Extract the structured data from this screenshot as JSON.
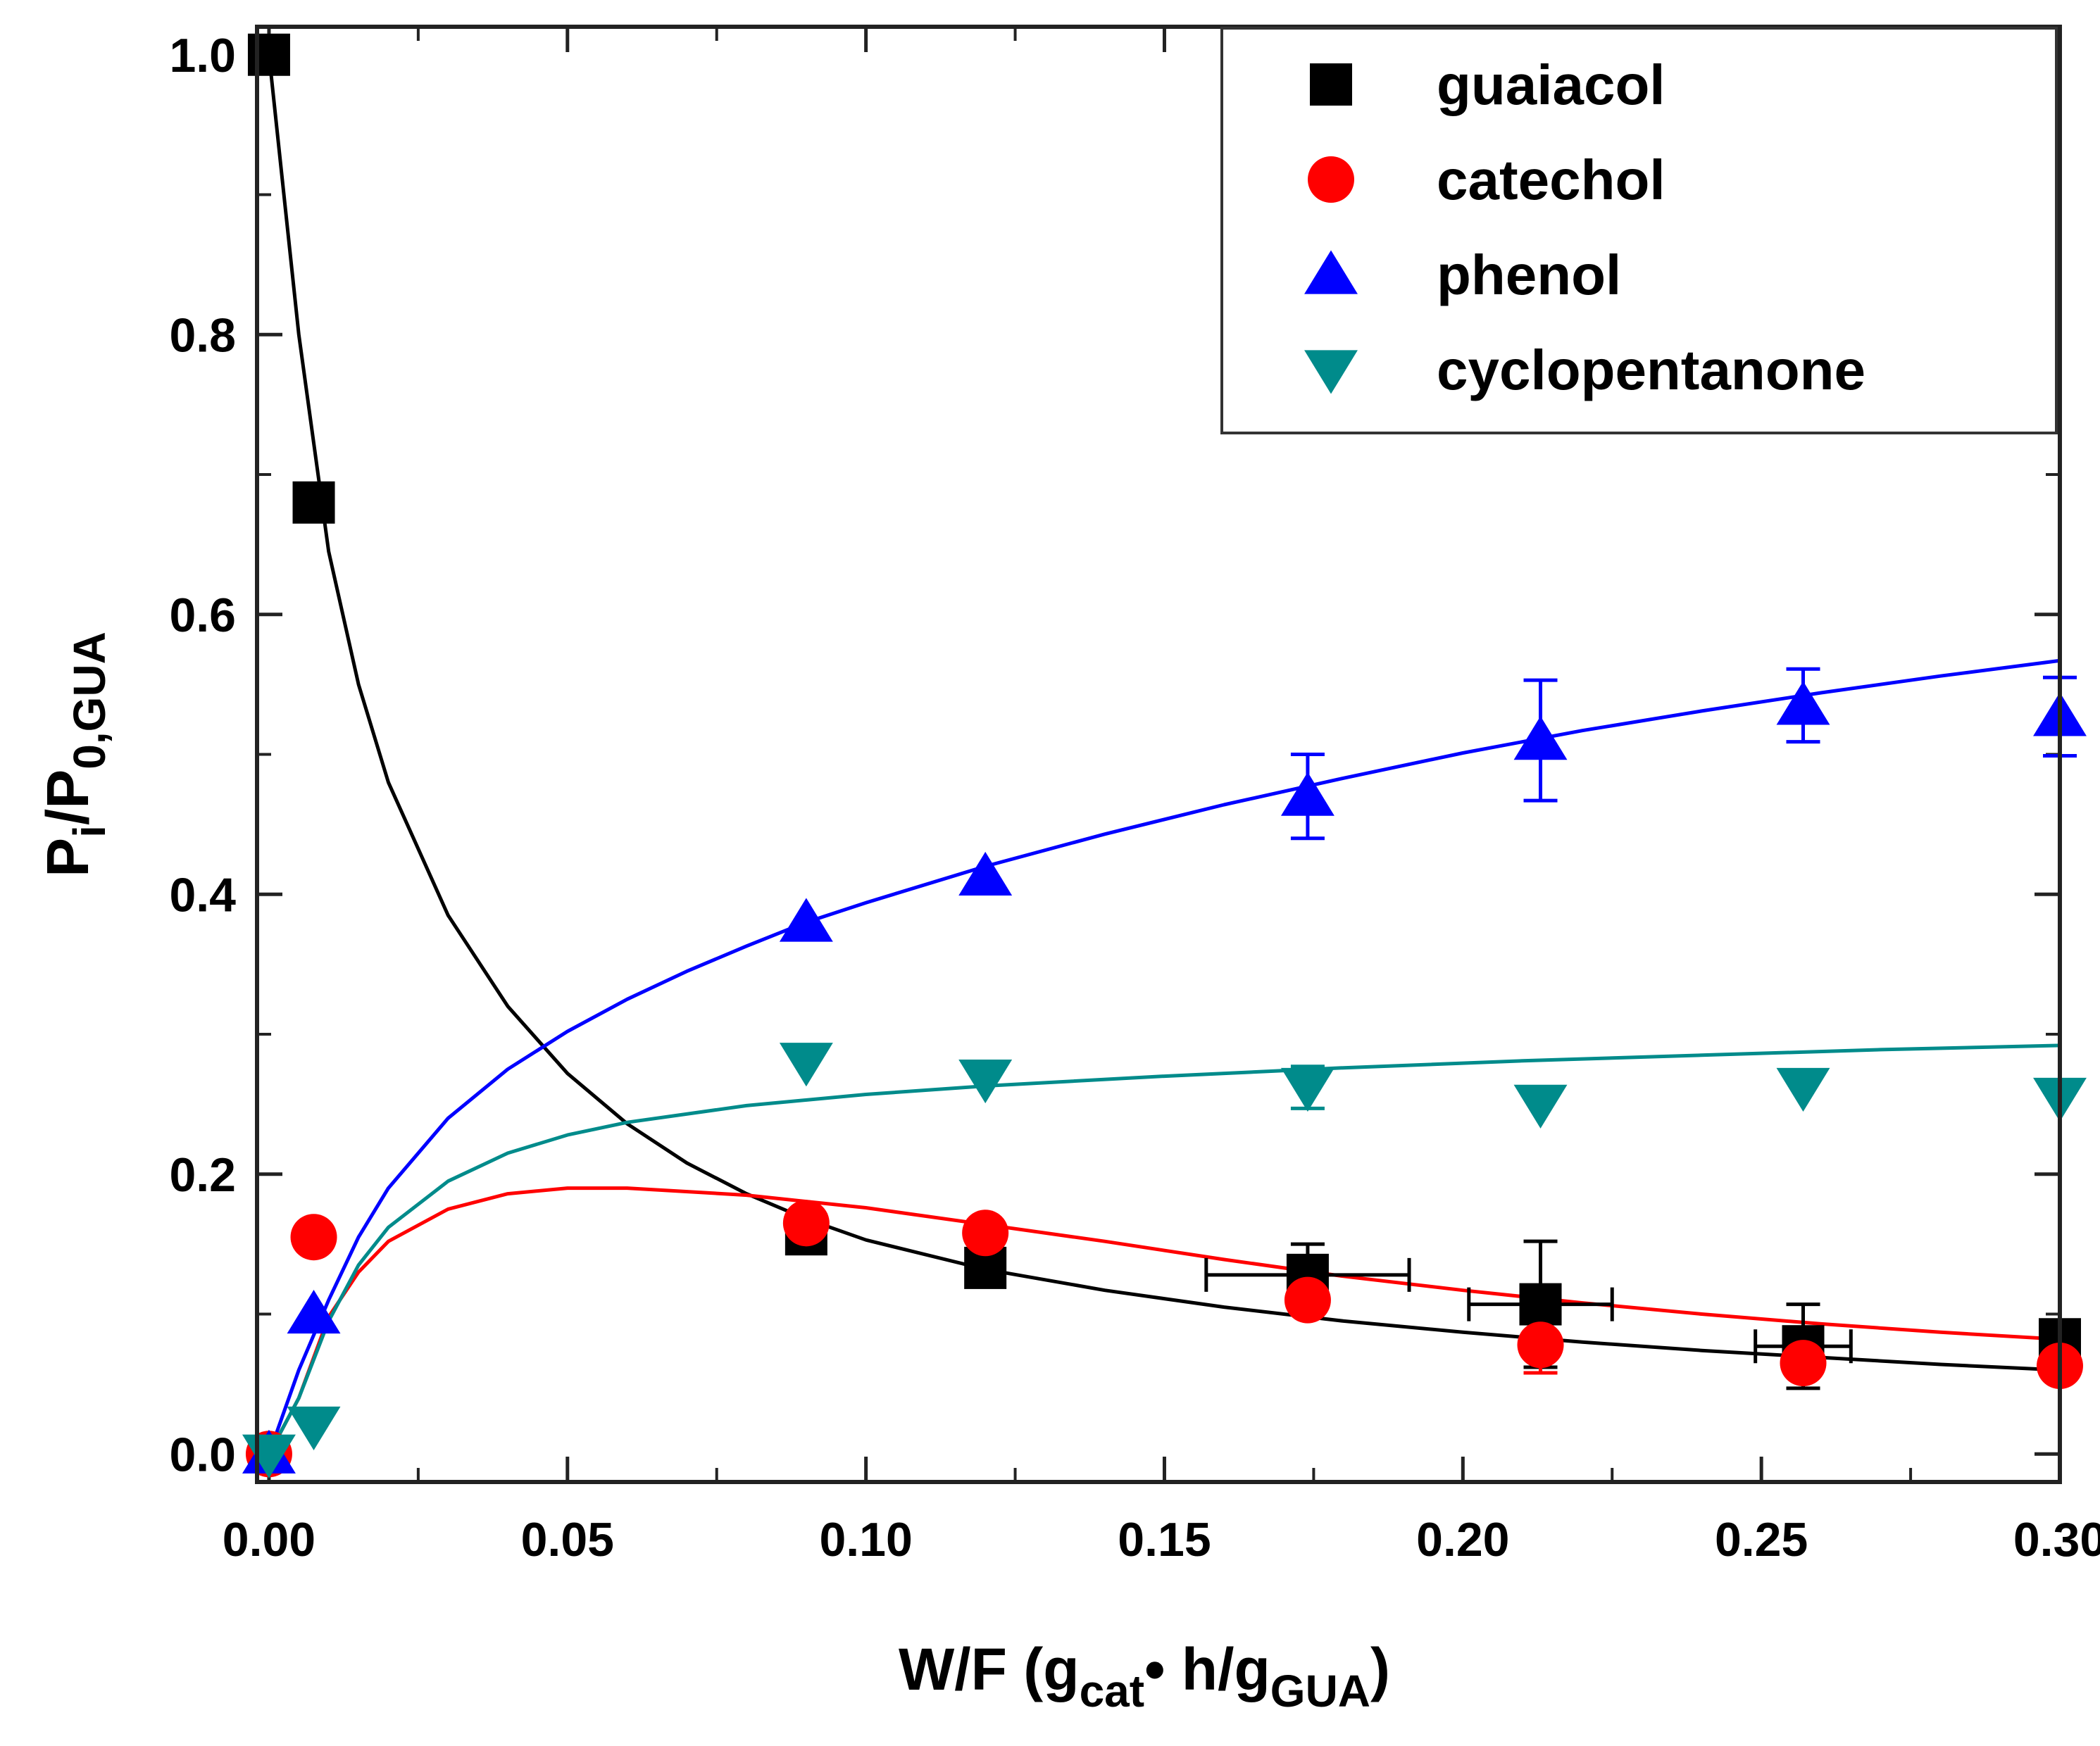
{
  "chart_data": {
    "type": "scatter",
    "xlabel": {
      "main": "W/F (g",
      "sub1": "cat",
      "mid": "• h/g",
      "sub2": "GUA",
      "end": ")"
    },
    "ylabel": {
      "main": "P",
      "sub1": "i",
      "mid": "/P",
      "sub2": "0,GUA"
    },
    "xlim": [
      -0.002,
      0.3
    ],
    "ylim": [
      -0.02,
      1.02
    ],
    "x_ticks": [
      "0.00",
      "0.05",
      "0.10",
      "0.15",
      "0.20",
      "0.25",
      "0.30"
    ],
    "y_ticks": [
      "0.0",
      "0.2",
      "0.4",
      "0.6",
      "0.8",
      "1.0"
    ],
    "legend_position": "top-right",
    "series": [
      {
        "name": "guaiacol",
        "marker": "square",
        "color": "#000000",
        "points": [
          {
            "x": 0.0,
            "y": 1.0
          },
          {
            "x": 0.0075,
            "y": 0.68
          },
          {
            "x": 0.09,
            "y": 0.157
          },
          {
            "x": 0.12,
            "y": 0.133
          },
          {
            "x": 0.174,
            "y": 0.128,
            "yerr": 0.022,
            "xerr": 0.017
          },
          {
            "x": 0.213,
            "y": 0.107,
            "yerr": 0.045,
            "xerr": 0.012
          },
          {
            "x": 0.257,
            "y": 0.077,
            "yerr": 0.03,
            "xerr": 0.008
          },
          {
            "x": 0.3,
            "y": 0.082
          }
        ]
      },
      {
        "name": "catechol",
        "marker": "circle",
        "color": "#ff0000",
        "points": [
          {
            "x": 0.0,
            "y": 0.0
          },
          {
            "x": 0.0075,
            "y": 0.155
          },
          {
            "x": 0.09,
            "y": 0.165
          },
          {
            "x": 0.12,
            "y": 0.158
          },
          {
            "x": 0.174,
            "y": 0.11
          },
          {
            "x": 0.213,
            "y": 0.078,
            "yerr": 0.02
          },
          {
            "x": 0.257,
            "y": 0.065
          },
          {
            "x": 0.3,
            "y": 0.063
          }
        ]
      },
      {
        "name": "phenol",
        "marker": "triangle-up",
        "color": "#0000ff",
        "points": [
          {
            "x": 0.0,
            "y": 0.0
          },
          {
            "x": 0.0075,
            "y": 0.1
          },
          {
            "x": 0.09,
            "y": 0.38
          },
          {
            "x": 0.12,
            "y": 0.413
          },
          {
            "x": 0.174,
            "y": 0.47,
            "yerr": 0.03
          },
          {
            "x": 0.213,
            "y": 0.51,
            "yerr": 0.043
          },
          {
            "x": 0.257,
            "y": 0.535,
            "yerr": 0.026
          },
          {
            "x": 0.3,
            "y": 0.527,
            "yerr": 0.028
          }
        ]
      },
      {
        "name": "cyclopentanone",
        "marker": "triangle-down",
        "color": "#008b8b",
        "points": [
          {
            "x": 0.0,
            "y": 0.0
          },
          {
            "x": 0.0075,
            "y": 0.02
          },
          {
            "x": 0.09,
            "y": 0.28
          },
          {
            "x": 0.12,
            "y": 0.268
          },
          {
            "x": 0.174,
            "y": 0.262,
            "yerr": 0.015
          },
          {
            "x": 0.213,
            "y": 0.25
          },
          {
            "x": 0.257,
            "y": 0.262
          },
          {
            "x": 0.3,
            "y": 0.255
          }
        ]
      }
    ],
    "fit_curves": [
      {
        "series": "guaiacol",
        "color": "#000000",
        "points": [
          [
            0.0,
            1.0
          ],
          [
            0.002,
            0.92
          ],
          [
            0.005,
            0.8
          ],
          [
            0.01,
            0.645
          ],
          [
            0.015,
            0.55
          ],
          [
            0.02,
            0.48
          ],
          [
            0.03,
            0.385
          ],
          [
            0.04,
            0.32
          ],
          [
            0.05,
            0.272
          ],
          [
            0.06,
            0.236
          ],
          [
            0.07,
            0.208
          ],
          [
            0.08,
            0.186
          ],
          [
            0.09,
            0.168
          ],
          [
            0.1,
            0.153
          ],
          [
            0.12,
            0.132
          ],
          [
            0.14,
            0.117
          ],
          [
            0.16,
            0.105
          ],
          [
            0.18,
            0.095
          ],
          [
            0.2,
            0.087
          ],
          [
            0.22,
            0.08
          ],
          [
            0.24,
            0.074
          ],
          [
            0.26,
            0.069
          ],
          [
            0.28,
            0.064
          ],
          [
            0.3,
            0.06
          ]
        ]
      },
      {
        "series": "catechol",
        "color": "#ff0000",
        "points": [
          [
            0.0,
            0.0
          ],
          [
            0.005,
            0.04
          ],
          [
            0.01,
            0.098
          ],
          [
            0.015,
            0.13
          ],
          [
            0.02,
            0.152
          ],
          [
            0.03,
            0.175
          ],
          [
            0.04,
            0.186
          ],
          [
            0.05,
            0.19
          ],
          [
            0.06,
            0.19
          ],
          [
            0.08,
            0.185
          ],
          [
            0.1,
            0.176
          ],
          [
            0.12,
            0.164
          ],
          [
            0.14,
            0.152
          ],
          [
            0.16,
            0.139
          ],
          [
            0.18,
            0.127
          ],
          [
            0.2,
            0.117
          ],
          [
            0.22,
            0.108
          ],
          [
            0.24,
            0.1
          ],
          [
            0.26,
            0.093
          ],
          [
            0.28,
            0.087
          ],
          [
            0.3,
            0.082
          ]
        ]
      },
      {
        "series": "phenol",
        "color": "#0000ff",
        "points": [
          [
            0.0,
            0.0
          ],
          [
            0.005,
            0.06
          ],
          [
            0.01,
            0.11
          ],
          [
            0.015,
            0.155
          ],
          [
            0.02,
            0.19
          ],
          [
            0.03,
            0.24
          ],
          [
            0.04,
            0.275
          ],
          [
            0.05,
            0.302
          ],
          [
            0.06,
            0.325
          ],
          [
            0.07,
            0.345
          ],
          [
            0.08,
            0.363
          ],
          [
            0.09,
            0.38
          ],
          [
            0.1,
            0.394
          ],
          [
            0.12,
            0.42
          ],
          [
            0.14,
            0.443
          ],
          [
            0.16,
            0.464
          ],
          [
            0.18,
            0.483
          ],
          [
            0.2,
            0.501
          ],
          [
            0.22,
            0.517
          ],
          [
            0.24,
            0.531
          ],
          [
            0.26,
            0.544
          ],
          [
            0.28,
            0.556
          ],
          [
            0.3,
            0.567
          ]
        ]
      },
      {
        "series": "cyclopentanone",
        "color": "#008b8b",
        "points": [
          [
            0.0,
            0.0
          ],
          [
            0.005,
            0.04
          ],
          [
            0.01,
            0.095
          ],
          [
            0.015,
            0.135
          ],
          [
            0.02,
            0.162
          ],
          [
            0.03,
            0.195
          ],
          [
            0.04,
            0.215
          ],
          [
            0.05,
            0.228
          ],
          [
            0.06,
            0.237
          ],
          [
            0.08,
            0.249
          ],
          [
            0.1,
            0.257
          ],
          [
            0.12,
            0.263
          ],
          [
            0.15,
            0.27
          ],
          [
            0.18,
            0.276
          ],
          [
            0.21,
            0.281
          ],
          [
            0.24,
            0.285
          ],
          [
            0.27,
            0.289
          ],
          [
            0.3,
            0.292
          ]
        ]
      }
    ]
  }
}
